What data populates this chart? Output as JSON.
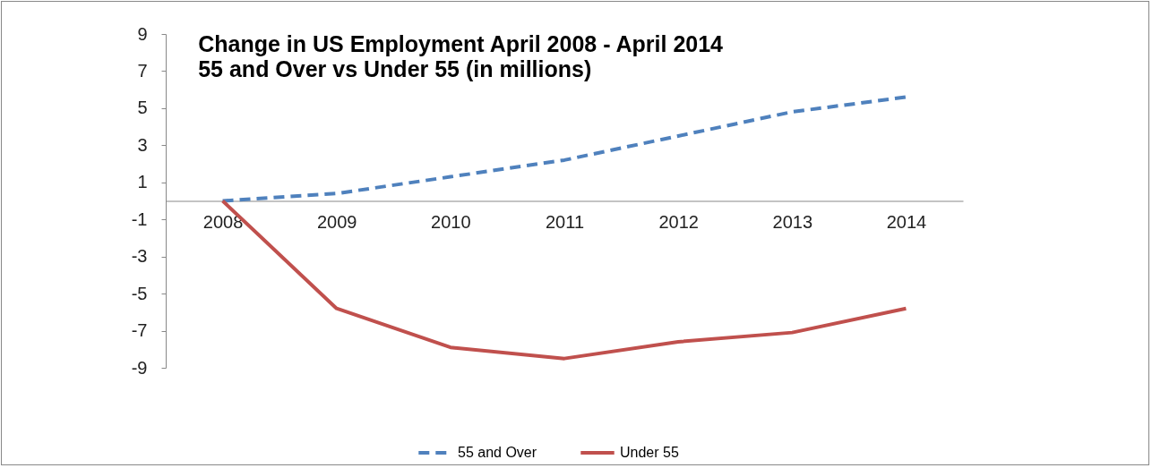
{
  "chart_data": {
    "type": "line",
    "title": "Change in US Employment April 2008 - April 2014",
    "subtitle": "55 and Over vs Under 55 (in millions)",
    "categories": [
      "2008",
      "2009",
      "2010",
      "2011",
      "2012",
      "2013",
      "2014"
    ],
    "series": [
      {
        "name": "55 and Over",
        "color": "#4f81bd",
        "line_style": "dashed",
        "values": [
          0,
          0.4,
          1.3,
          2.2,
          3.5,
          4.8,
          5.6
        ]
      },
      {
        "name": "Under 55",
        "color": "#c0504d",
        "line_style": "solid",
        "values": [
          0,
          -5.8,
          -7.9,
          -8.5,
          -7.6,
          -7.1,
          -5.8
        ]
      }
    ],
    "ylim": [
      -9,
      9
    ],
    "yticks": [
      -9,
      -7,
      -5,
      -3,
      -1,
      1,
      3,
      5,
      7,
      9
    ],
    "grid": false,
    "legend": "bottom",
    "marker": "none"
  }
}
